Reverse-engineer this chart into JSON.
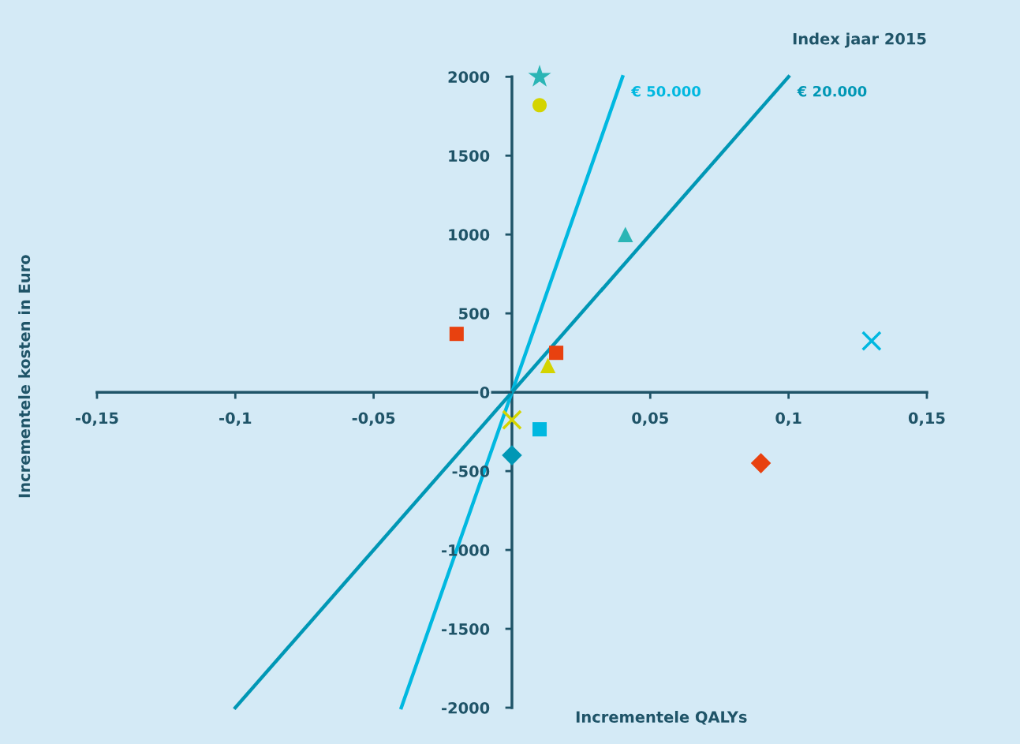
{
  "chart_data": {
    "type": "scatter",
    "annotations": [
      "Index jaar 2015"
    ],
    "xlabel": "Incrementele QALYs",
    "ylabel": "Incrementele kosten in Euro",
    "xlim": [
      -0.15,
      0.15
    ],
    "ylim": [
      -2000,
      2000
    ],
    "xticks": [
      {
        "value": -0.15,
        "label": "-0,15"
      },
      {
        "value": -0.1,
        "label": "-0,1"
      },
      {
        "value": -0.05,
        "label": "-0,05"
      },
      {
        "value": 0.05,
        "label": "0,05"
      },
      {
        "value": 0.1,
        "label": "0,1"
      },
      {
        "value": 0.15,
        "label": "0,15"
      }
    ],
    "yticks": [
      -2000,
      -1500,
      -1000,
      -500,
      0,
      500,
      1000,
      1500,
      2000
    ],
    "grid": false,
    "legend": false,
    "series": [
      {
        "type": "line",
        "name": "€ 50.000",
        "color": "#00b8e0",
        "x": [
          -0.04,
          0.04
        ],
        "values": [
          -2000,
          2000
        ]
      },
      {
        "type": "line",
        "name": "€ 20.000",
        "color": "#0097b5",
        "x": [
          -0.1,
          0.1
        ],
        "values": [
          -2000,
          2000
        ]
      },
      {
        "marker": "star",
        "color": "#2bb5b5",
        "x": [
          0.01
        ],
        "values": [
          2000
        ]
      },
      {
        "marker": "circle",
        "color": "#d4d400",
        "x": [
          0.01
        ],
        "values": [
          1820
        ]
      },
      {
        "marker": "triangle",
        "color": "#2bb5b5",
        "x": [
          0.041
        ],
        "values": [
          1000
        ]
      },
      {
        "marker": "square",
        "color": "#e8410f",
        "x": [
          -0.02,
          0.016
        ],
        "values": [
          370,
          250
        ]
      },
      {
        "marker": "triangle",
        "color": "#d4d400",
        "x": [
          0.013
        ],
        "values": [
          170
        ]
      },
      {
        "marker": "cross",
        "color": "#00b8e0",
        "x": [
          0.13
        ],
        "values": [
          325
        ]
      },
      {
        "marker": "cross",
        "color": "#d4d400",
        "x": [
          0.0
        ],
        "values": [
          -175
        ]
      },
      {
        "marker": "square",
        "color": "#00b8e0",
        "x": [
          0.01
        ],
        "values": [
          -235
        ]
      },
      {
        "marker": "diamond",
        "color": "#0097b5",
        "x": [
          0.0
        ],
        "values": [
          -400
        ]
      },
      {
        "marker": "diamond",
        "color": "#e8410f",
        "x": [
          0.09
        ],
        "values": [
          -450
        ]
      }
    ]
  }
}
